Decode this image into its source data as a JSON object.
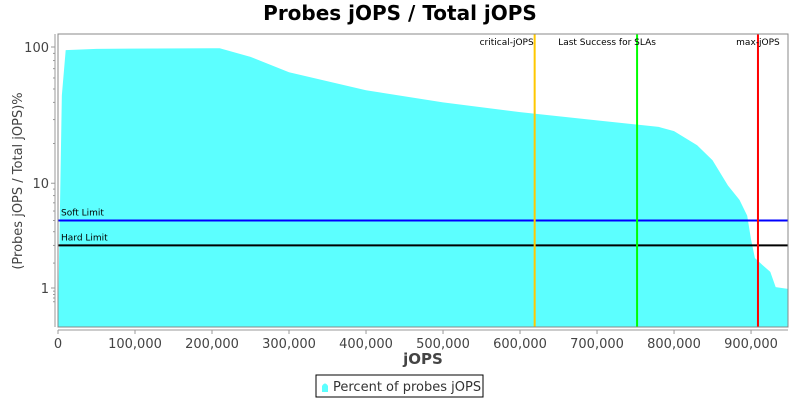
{
  "chart_data": {
    "type": "area",
    "title": "Probes jOPS / Total jOPS",
    "xlabel": "jOPS",
    "ylabel": "(Probes jOPS / Total jOPS)%",
    "xlim": [
      0,
      948000
    ],
    "ylim": [
      0.5,
      130
    ],
    "yscale": "log",
    "grid": false,
    "x_ticks": [
      0,
      100000,
      200000,
      300000,
      400000,
      500000,
      600000,
      700000,
      800000,
      900000
    ],
    "x_tick_labels": [
      "0",
      "100,000",
      "200,000",
      "300,000",
      "400,000",
      "500,000",
      "600,000",
      "700,000",
      "800,000",
      "900,000"
    ],
    "y_ticks": [
      1,
      10,
      100
    ],
    "y_tick_labels": [
      "1",
      "10",
      "100"
    ],
    "series": [
      {
        "name": "Percent of probes jOPS",
        "color": "#5cffff",
        "x": [
          0,
          5000,
          10000,
          50000,
          200000,
          210000,
          250000,
          300000,
          400000,
          500000,
          600000,
          700000,
          780000,
          800000,
          830000,
          850000,
          870000,
          885000,
          895000,
          900000,
          905000,
          915000,
          925000,
          932000,
          948000
        ],
        "y": [
          0.1,
          45,
          95,
          97,
          98,
          98,
          85,
          66,
          49,
          40,
          34,
          29.6,
          26.5,
          24.7,
          19.4,
          15,
          9.6,
          7.4,
          5.5,
          3.4,
          2.26,
          1.9,
          1.6,
          1.03,
          0.97
        ]
      }
    ],
    "horizontal_markers": [
      {
        "label": "Soft Limit",
        "value": 5,
        "color": "#0000ff"
      },
      {
        "label": "Hard Limit",
        "value": 3,
        "color": "#000000"
      }
    ],
    "vertical_markers": [
      {
        "label": "critical-jOPS",
        "value": 619000,
        "color": "#ffc800"
      },
      {
        "label": "Last Success for SLAs",
        "value": 752000,
        "color": "#00ff00"
      },
      {
        "label": "max-jOPS",
        "value": 909000,
        "color": "#ff0000"
      }
    ],
    "legend": {
      "placement": "bottom",
      "entries": [
        "Percent of probes jOPS"
      ]
    }
  }
}
